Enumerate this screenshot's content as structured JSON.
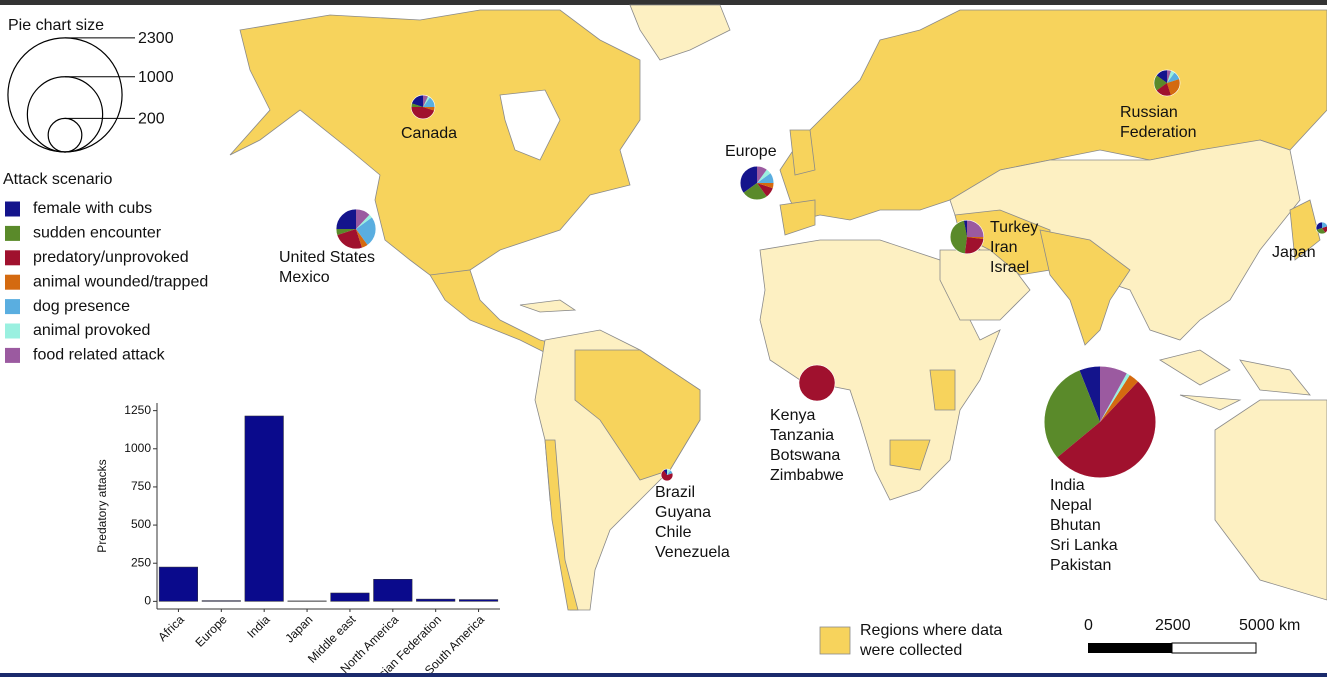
{
  "size_legend": {
    "title": "Pie chart size",
    "values": [
      2300,
      1000,
      200
    ]
  },
  "attack_scenarios": {
    "title": "Attack scenario",
    "items": [
      {
        "name": "female with cubs",
        "color": "#14148c"
      },
      {
        "name": "sudden encounter",
        "color": "#5a8a2a"
      },
      {
        "name": "predatory/unprovoked",
        "color": "#a0112e"
      },
      {
        "name": "animal wounded/trapped",
        "color": "#d46a10"
      },
      {
        "name": "dog presence",
        "color": "#5aaee0"
      },
      {
        "name": "animal provoked",
        "color": "#9af0e0"
      },
      {
        "name": "food related attack",
        "color": "#9b5aa0"
      }
    ]
  },
  "pies": [
    {
      "labels": [
        "Canada"
      ],
      "total": 100,
      "shares": [
        20,
        5,
        45,
        5,
        15,
        3,
        7
      ]
    },
    {
      "labels": [
        "United States",
        "Mexico"
      ],
      "total": 280,
      "shares": [
        25,
        5,
        25,
        5,
        25,
        3,
        12
      ]
    },
    {
      "labels": [
        "Europe"
      ],
      "total": 200,
      "shares": [
        35,
        25,
        10,
        5,
        10,
        5,
        10
      ]
    },
    {
      "labels": [
        "Turkey",
        "Iran",
        "Israel"
      ],
      "total": 200,
      "shares": [
        3,
        45,
        25,
        2,
        0,
        0,
        25
      ]
    },
    {
      "labels": [
        "Russian",
        "Federation"
      ],
      "total": 120,
      "shares": [
        15,
        20,
        20,
        25,
        10,
        5,
        5
      ]
    },
    {
      "labels": [
        "Kenya",
        "Tanzania",
        "Botswana",
        "Zimbabwe"
      ],
      "total": 230,
      "shares": [
        0,
        0,
        100,
        0,
        0,
        0,
        0
      ]
    },
    {
      "labels": [
        "India",
        "Nepal",
        "Bhutan",
        "Sri Lanka",
        "Pakistan"
      ],
      "total": 2200,
      "shares": [
        6,
        30,
        52,
        3,
        0,
        1,
        8
      ]
    },
    {
      "labels": [
        "Brazil",
        "Guyana",
        "Chile",
        "Venezuela"
      ],
      "total": 25,
      "shares": [
        10,
        0,
        70,
        0,
        10,
        10,
        0
      ]
    },
    {
      "labels": [
        "Japan"
      ],
      "total": 25,
      "shares": [
        30,
        30,
        20,
        0,
        20,
        0,
        0
      ]
    }
  ],
  "map_legend": {
    "lines": [
      "Regions where data",
      "were collected"
    ]
  },
  "scale_bar": {
    "labels": [
      "0",
      "2500",
      "5000 km"
    ]
  },
  "chart_data": {
    "type": "bar",
    "y_label": "Predatory attacks",
    "categories": [
      "Africa",
      "Europe",
      "India",
      "Japan",
      "Middle east",
      "North America",
      "Russian Federation",
      "South America"
    ],
    "values": [
      225,
      5,
      1215,
      3,
      55,
      145,
      15,
      12
    ],
    "color": "#0a0a8c",
    "ylim": [
      -50,
      1300
    ],
    "yticks": [
      0,
      250,
      500,
      750,
      1000,
      1250
    ]
  }
}
